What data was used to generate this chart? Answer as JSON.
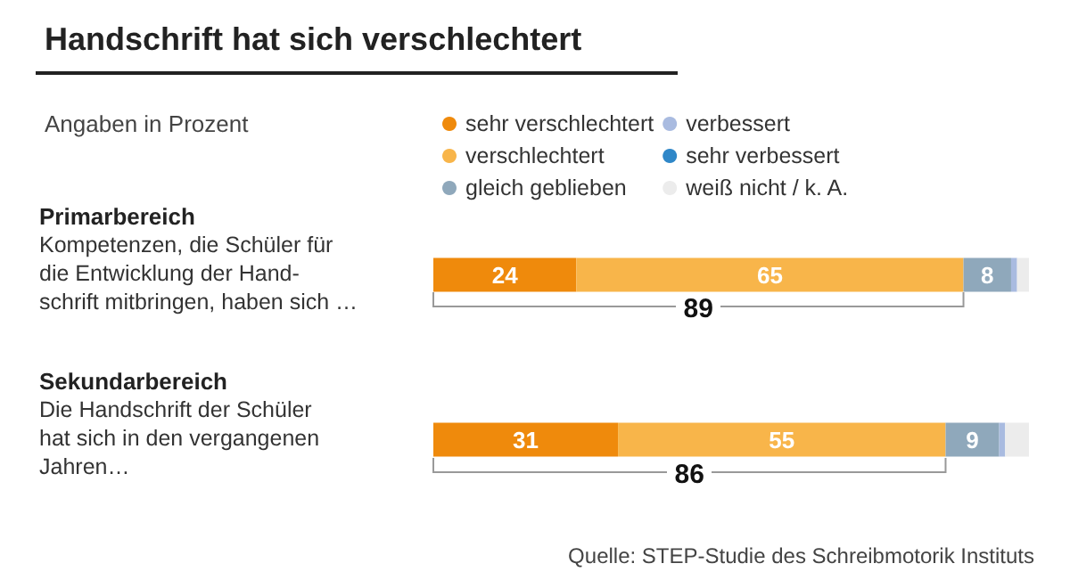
{
  "chart_data": {
    "type": "bar",
    "orientation": "horizontal",
    "stacked": true,
    "title": "Handschrift hat sich verschlechtert",
    "subtitle": "Angaben in Prozent",
    "categories": [
      "Primarbereich\nKompetenzen, die Schüler für\ndie Entwicklung der Hand-\nschrift mitbringen, haben sich …",
      "Sekundarbereich\nDie Handschrift der Schüler\nhat sich in den vergangenen\nJahren…"
    ],
    "series": [
      {
        "name": "sehr verschlechtert",
        "color": "#ef8a0c",
        "values": [
          24,
          31
        ],
        "value_labels": [
          "24",
          "31"
        ]
      },
      {
        "name": "verschlechtert",
        "color": "#f8b54a",
        "values": [
          65,
          55
        ],
        "value_labels": [
          "65",
          "55"
        ]
      },
      {
        "name": "gleich geblieben",
        "color": "#8fa8bb",
        "values": [
          8,
          9
        ],
        "value_labels": [
          "8",
          "9"
        ]
      },
      {
        "name": "verbessert",
        "color": "#a9bbe0",
        "values": [
          1,
          1
        ]
      },
      {
        "name": "sehr verbessert",
        "color": "#2f87c8",
        "values": [
          0,
          0
        ]
      },
      {
        "name": "weiß nicht / k. A.",
        "color": "#ececec",
        "values": [
          2,
          4
        ]
      }
    ],
    "xlim": [
      0,
      100
    ],
    "tick_labels": "y",
    "legend": "top",
    "annotations": [
      "89",
      "86",
      "Quelle: STEP-Studie des Schreibmotorik Instituts"
    ]
  }
}
